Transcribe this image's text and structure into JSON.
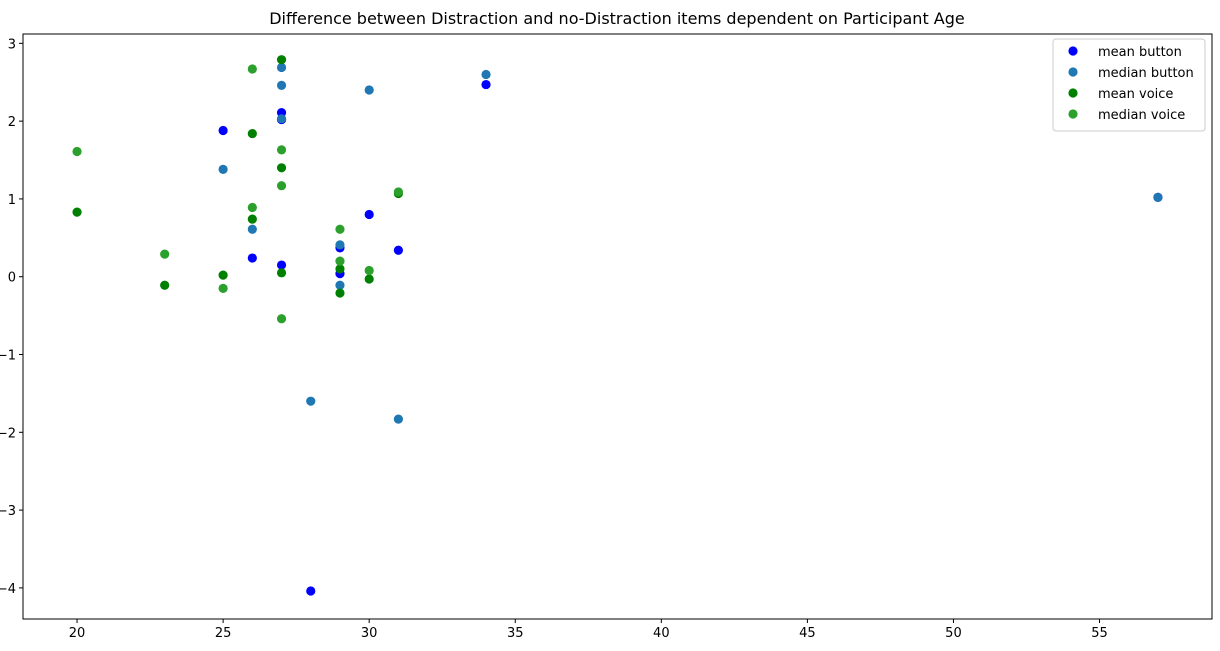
{
  "chart_data": {
    "type": "scatter",
    "title": "Difference between Distraction and no-Distraction items dependent on Participant Age",
    "xlabel": "",
    "ylabel": "",
    "xlim": [
      18.15,
      58.85
    ],
    "ylim": [
      -4.4,
      3.12
    ],
    "xticks": [
      20,
      25,
      30,
      35,
      40,
      45,
      50,
      55
    ],
    "yticks": [
      -4,
      -3,
      -2,
      -1,
      0,
      1,
      2,
      3
    ],
    "grid": false,
    "legend_position": "top-right",
    "series": [
      {
        "name": "mean button",
        "color": "#0000ff",
        "points": [
          [
            25,
            1.88
          ],
          [
            26,
            0.24
          ],
          [
            27,
            2.11
          ],
          [
            27,
            2.02
          ],
          [
            27,
            0.15
          ],
          [
            28,
            -4.04
          ],
          [
            29,
            0.37
          ],
          [
            29,
            0.04
          ],
          [
            30,
            0.8
          ],
          [
            31,
            0.34
          ],
          [
            34,
            2.47
          ],
          [
            57,
            1.02
          ]
        ]
      },
      {
        "name": "median button",
        "color": "#1f77b4",
        "points": [
          [
            25,
            1.38
          ],
          [
            26,
            0.61
          ],
          [
            27,
            2.69
          ],
          [
            27,
            2.46
          ],
          [
            27,
            2.03
          ],
          [
            28,
            -1.6
          ],
          [
            29,
            0.41
          ],
          [
            29,
            -0.11
          ],
          [
            30,
            2.4
          ],
          [
            31,
            -1.83
          ],
          [
            34,
            2.6
          ],
          [
            57,
            1.02
          ]
        ]
      },
      {
        "name": "mean voice",
        "color": "#008000",
        "points": [
          [
            20,
            0.83
          ],
          [
            23,
            -0.11
          ],
          [
            25,
            0.02
          ],
          [
            26,
            1.84
          ],
          [
            26,
            0.74
          ],
          [
            27,
            2.79
          ],
          [
            27,
            1.4
          ],
          [
            27,
            0.05
          ],
          [
            29,
            0.1
          ],
          [
            29,
            -0.21
          ],
          [
            30,
            -0.03
          ],
          [
            31,
            1.07
          ]
        ]
      },
      {
        "name": "median voice",
        "color": "#2ca02c",
        "points": [
          [
            20,
            1.61
          ],
          [
            23,
            0.29
          ],
          [
            25,
            -0.15
          ],
          [
            26,
            2.67
          ],
          [
            26,
            0.89
          ],
          [
            27,
            1.63
          ],
          [
            27,
            1.17
          ],
          [
            27,
            -0.54
          ],
          [
            29,
            0.61
          ],
          [
            29,
            0.2
          ],
          [
            30,
            0.08
          ],
          [
            31,
            1.09
          ]
        ]
      }
    ]
  }
}
